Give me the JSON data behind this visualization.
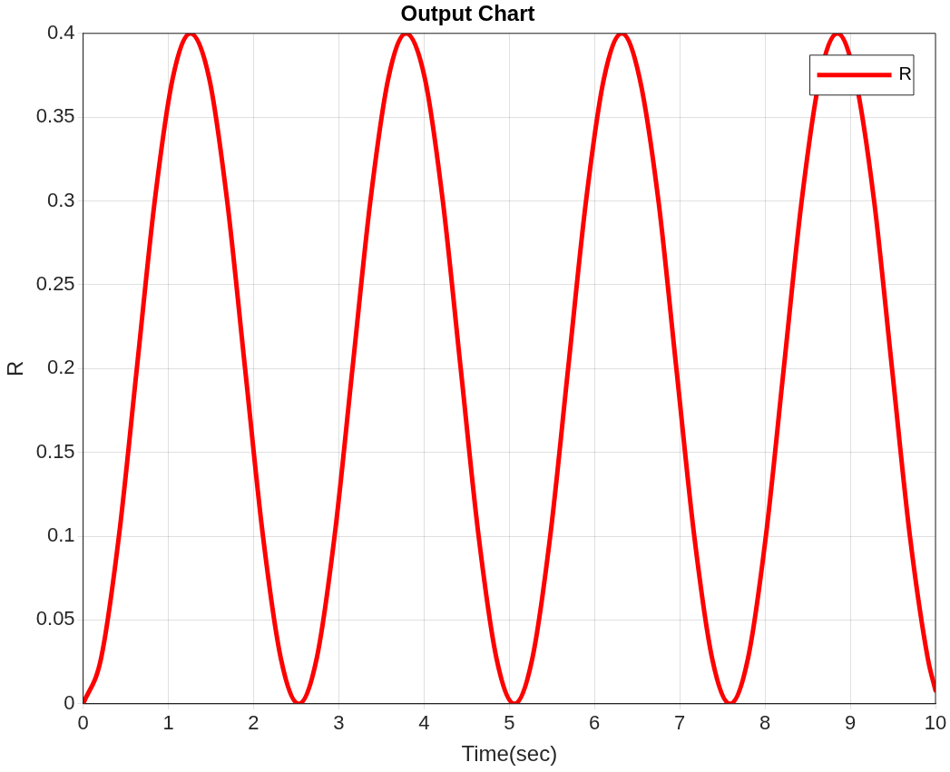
{
  "chart_data": {
    "type": "line",
    "title": "Output Chart",
    "xlabel": "Time(sec)",
    "ylabel": "R",
    "xlim": [
      0,
      10
    ],
    "xticks": [
      0,
      1,
      2,
      3,
      4,
      5,
      6,
      7,
      8,
      9,
      10
    ],
    "ylim": [
      0,
      0.4
    ],
    "yticks": [
      0,
      0.05,
      0.1,
      0.15,
      0.2,
      0.25,
      0.3,
      0.35,
      0.4
    ],
    "grid": true,
    "legend": "top right",
    "marker": "none",
    "line_style": "solid",
    "series": [
      {
        "name": "R",
        "color": "#ff0000",
        "x": [
          0,
          0.21,
          0.42,
          0.63,
          0.84,
          1.05,
          1.26,
          1.48,
          1.69,
          1.9,
          2.11,
          2.32,
          2.53,
          2.74,
          2.95,
          3.16,
          3.37,
          3.58,
          3.79,
          4.01,
          4.22,
          4.43,
          4.64,
          4.85,
          5.06,
          5.27,
          5.48,
          5.69,
          5.9,
          6.11,
          6.32,
          6.53,
          6.75,
          6.96,
          7.17,
          7.38,
          7.59,
          7.8,
          8.01,
          8.22,
          8.43,
          8.64,
          8.85,
          9.06,
          9.28,
          9.49,
          9.7,
          9.91,
          10
        ],
        "values": [
          0,
          0.027,
          0.1,
          0.2,
          0.3,
          0.373,
          0.4,
          0.373,
          0.3,
          0.2,
          0.1,
          0.027,
          0,
          0.027,
          0.1,
          0.2,
          0.3,
          0.373,
          0.4,
          0.373,
          0.3,
          0.2,
          0.1,
          0.027,
          0,
          0.027,
          0.1,
          0.2,
          0.3,
          0.373,
          0.4,
          0.373,
          0.3,
          0.2,
          0.1,
          0.027,
          0,
          0.027,
          0.1,
          0.2,
          0.3,
          0.373,
          0.4,
          0.373,
          0.3,
          0.2,
          0.1,
          0.027,
          0.008
        ]
      }
    ]
  }
}
